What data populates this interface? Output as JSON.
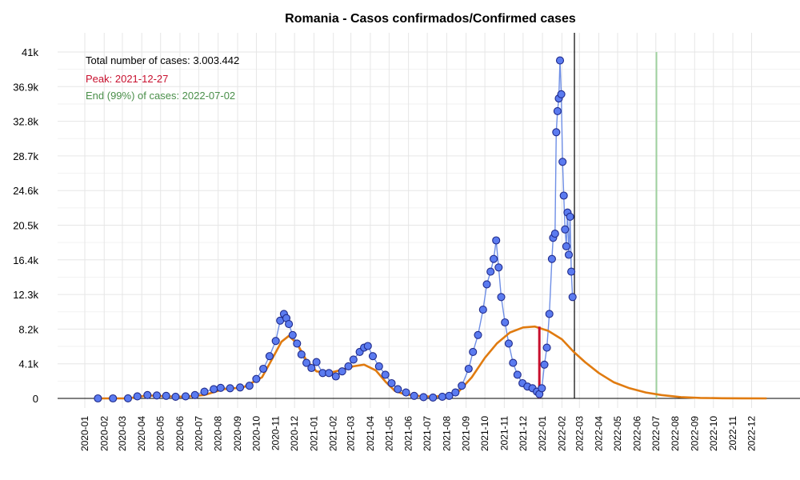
{
  "chart_data": {
    "type": "scatter",
    "title": "Romania - Casos confirmados/Confirmed cases",
    "xlabel": "",
    "ylabel": "",
    "xlim": [
      "2020-01-01",
      "2022-12-31"
    ],
    "ylim": [
      0,
      41000
    ],
    "yticks": [
      0,
      4100,
      8200,
      12300,
      16400,
      20500,
      24600,
      28700,
      32800,
      36900,
      41000
    ],
    "ytick_labels": [
      "0",
      "4.1k",
      "8.2k",
      "12.3k",
      "16.4k",
      "20.5k",
      "24.6k",
      "28.7k",
      "32.8k",
      "36.9k",
      "41k"
    ],
    "xtick_labels": [
      "2020-01",
      "2020-02",
      "2020-03",
      "2020-04",
      "2020-05",
      "2020-06",
      "2020-07",
      "2020-08",
      "2020-09",
      "2020-10",
      "2020-11",
      "2020-12",
      "2021-01",
      "2021-02",
      "2021-03",
      "2021-04",
      "2021-05",
      "2021-06",
      "2021-07",
      "2021-08",
      "2021-09",
      "2021-10",
      "2021-11",
      "2021-12",
      "2022-01",
      "2022-02",
      "2022-03",
      "2022-04",
      "2022-05",
      "2022-06",
      "2022-07",
      "2022-08",
      "2022-09",
      "2022-10",
      "2022-11",
      "2022-12"
    ],
    "grid": true,
    "annotations": {
      "total": "Total number of cases: 3.003.442",
      "peak": "Peak: 2021-12-27",
      "end": "End (99%) of cases: 2022-07-02"
    },
    "reference_lines": {
      "peak_date": "2021-12-27",
      "peak_value": 8500,
      "today_date": "2022-02-21",
      "end_date": "2022-07-02"
    },
    "series": [
      {
        "kind": "points",
        "x": [
          "2020-01-22",
          "2020-02-15",
          "2020-03-10",
          "2020-03-25",
          "2020-04-10",
          "2020-04-25",
          "2020-05-10",
          "2020-05-25",
          "2020-06-10",
          "2020-06-25",
          "2020-07-10",
          "2020-07-25",
          "2020-08-05",
          "2020-08-20",
          "2020-09-05",
          "2020-09-20",
          "2020-10-01",
          "2020-10-12",
          "2020-10-22",
          "2020-11-01",
          "2020-11-08",
          "2020-11-14",
          "2020-11-18",
          "2020-11-22",
          "2020-11-28",
          "2020-12-05",
          "2020-12-12",
          "2020-12-20",
          "2020-12-28",
          "2021-01-05",
          "2021-01-15",
          "2021-01-25",
          "2021-02-05",
          "2021-02-15",
          "2021-02-25",
          "2021-03-05",
          "2021-03-15",
          "2021-03-22",
          "2021-03-28",
          "2021-04-05",
          "2021-04-15",
          "2021-04-25",
          "2021-05-05",
          "2021-05-15",
          "2021-05-28",
          "2021-06-10",
          "2021-06-25",
          "2021-07-10",
          "2021-07-25",
          "2021-08-05",
          "2021-08-15",
          "2021-08-25",
          "2021-09-05",
          "2021-09-12",
          "2021-09-20",
          "2021-09-28",
          "2021-10-04",
          "2021-10-10",
          "2021-10-15",
          "2021-10-19",
          "2021-10-23",
          "2021-10-27",
          "2021-11-02",
          "2021-11-08",
          "2021-11-15",
          "2021-11-22",
          "2021-11-30",
          "2021-12-08",
          "2021-12-16",
          "2021-12-23",
          "2021-12-27",
          "2021-12-31",
          "2022-01-04",
          "2022-01-08",
          "2022-01-12",
          "2022-01-16",
          "2022-01-18",
          "2022-01-21",
          "2022-01-23",
          "2022-01-25",
          "2022-01-27",
          "2022-01-29",
          "2022-01-31",
          "2022-02-02",
          "2022-02-04",
          "2022-02-06",
          "2022-02-08",
          "2022-02-10",
          "2022-02-12",
          "2022-02-14",
          "2022-02-16",
          "2022-02-18"
        ],
        "y": [
          0,
          0,
          5,
          250,
          400,
          350,
          300,
          200,
          250,
          400,
          800,
          1100,
          1250,
          1200,
          1300,
          1500,
          2300,
          3500,
          5000,
          6800,
          9200,
          10000,
          9500,
          8800,
          7500,
          6500,
          5200,
          4200,
          3600,
          4300,
          3000,
          3000,
          2600,
          3200,
          3800,
          4600,
          5500,
          6000,
          6200,
          5000,
          3800,
          2800,
          1800,
          1100,
          700,
          300,
          150,
          100,
          200,
          300,
          700,
          1500,
          3500,
          5500,
          7500,
          10500,
          13500,
          15000,
          16500,
          18700,
          15500,
          12000,
          9000,
          6500,
          4200,
          2800,
          1800,
          1400,
          1200,
          800,
          500,
          1200,
          4000,
          6000,
          10000,
          16500,
          19000,
          19500,
          31500,
          34000,
          35500,
          40000,
          36000,
          28000,
          24000,
          20000,
          18000,
          22000,
          17000,
          21500,
          15000,
          12000
        ]
      },
      {
        "kind": "model",
        "x": [
          "2020-01-22",
          "2020-03-10",
          "2020-04-10",
          "2020-05-10",
          "2020-06-10",
          "2020-07-10",
          "2020-08-10",
          "2020-09-10",
          "2020-10-10",
          "2020-10-25",
          "2020-11-10",
          "2020-11-22",
          "2020-12-05",
          "2020-12-20",
          "2021-01-05",
          "2021-01-25",
          "2021-02-15",
          "2021-03-05",
          "2021-03-22",
          "2021-04-10",
          "2021-04-25",
          "2021-05-10",
          "2021-05-25",
          "2021-06-15",
          "2021-07-10",
          "2021-08-01",
          "2021-08-20",
          "2021-09-10",
          "2021-10-01",
          "2021-10-20",
          "2021-11-10",
          "2021-12-01",
          "2021-12-20",
          "2022-01-10",
          "2022-02-01",
          "2022-02-20",
          "2022-03-10",
          "2022-04-01",
          "2022-04-25",
          "2022-05-20",
          "2022-06-15",
          "2022-07-10",
          "2022-08-10",
          "2022-09-10",
          "2022-10-15",
          "2022-11-15",
          "2022-12-25"
        ],
        "y": [
          0,
          0,
          350,
          250,
          200,
          400,
          1100,
          1300,
          2500,
          4500,
          6700,
          7400,
          6500,
          4500,
          3200,
          3000,
          3400,
          3800,
          4000,
          3300,
          2000,
          900,
          500,
          300,
          200,
          350,
          800,
          2500,
          4800,
          6500,
          7800,
          8400,
          8500,
          8000,
          7000,
          5500,
          4300,
          3000,
          1900,
          1200,
          700,
          400,
          150,
          60,
          20,
          5,
          0
        ]
      }
    ]
  }
}
